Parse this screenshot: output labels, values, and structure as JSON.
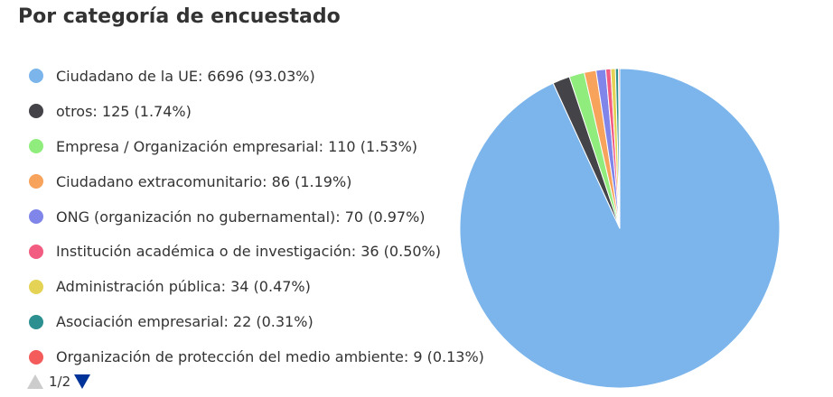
{
  "chart_data": {
    "type": "pie",
    "title": "Por categoría de encuestado",
    "legend_position": "left",
    "slices": [
      {
        "label": "Ciudadano de la UE: 6696 (93.03%)",
        "name": "Ciudadano de la UE",
        "value": 6696,
        "percent": 93.03,
        "color": "#7cb5ec"
      },
      {
        "label": "otros: 125 (1.74%)",
        "name": "otros",
        "value": 125,
        "percent": 1.74,
        "color": "#434348"
      },
      {
        "label": "Empresa / Organización empresarial: 110 (1.53%)",
        "name": "Empresa / Organización empresarial",
        "value": 110,
        "percent": 1.53,
        "color": "#90ed7d"
      },
      {
        "label": "Ciudadano extracomunitario: 86 (1.19%)",
        "name": "Ciudadano extracomunitario",
        "value": 86,
        "percent": 1.19,
        "color": "#f7a35c"
      },
      {
        "label": "ONG (organización no gubernamental): 70 (0.97%)",
        "name": "ONG (organización no gubernamental)",
        "value": 70,
        "percent": 0.97,
        "color": "#8085e9"
      },
      {
        "label": "Institución académica o de investigación: 36 (0.50%)",
        "name": "Institución académica o de investigación",
        "value": 36,
        "percent": 0.5,
        "color": "#f15c80"
      },
      {
        "label": "Administración pública: 34 (0.47%)",
        "name": "Administración pública",
        "value": 34,
        "percent": 0.47,
        "color": "#e4d354"
      },
      {
        "label": "Asociación empresarial: 22 (0.31%)",
        "name": "Asociación empresarial",
        "value": 22,
        "percent": 0.31,
        "color": "#2b908f"
      },
      {
        "label": "Organización de protección del medio ambiente: 9 (0.13%)",
        "name": "Organización de protección del medio ambiente",
        "value": 9,
        "percent": 0.13,
        "color": "#f45b5b"
      }
    ]
  },
  "legend_pager": {
    "text": "1/2",
    "up_icon": "arrow-up-icon",
    "down_icon": "arrow-down-icon",
    "up_color": "#cccccc",
    "down_color": "#003399"
  }
}
